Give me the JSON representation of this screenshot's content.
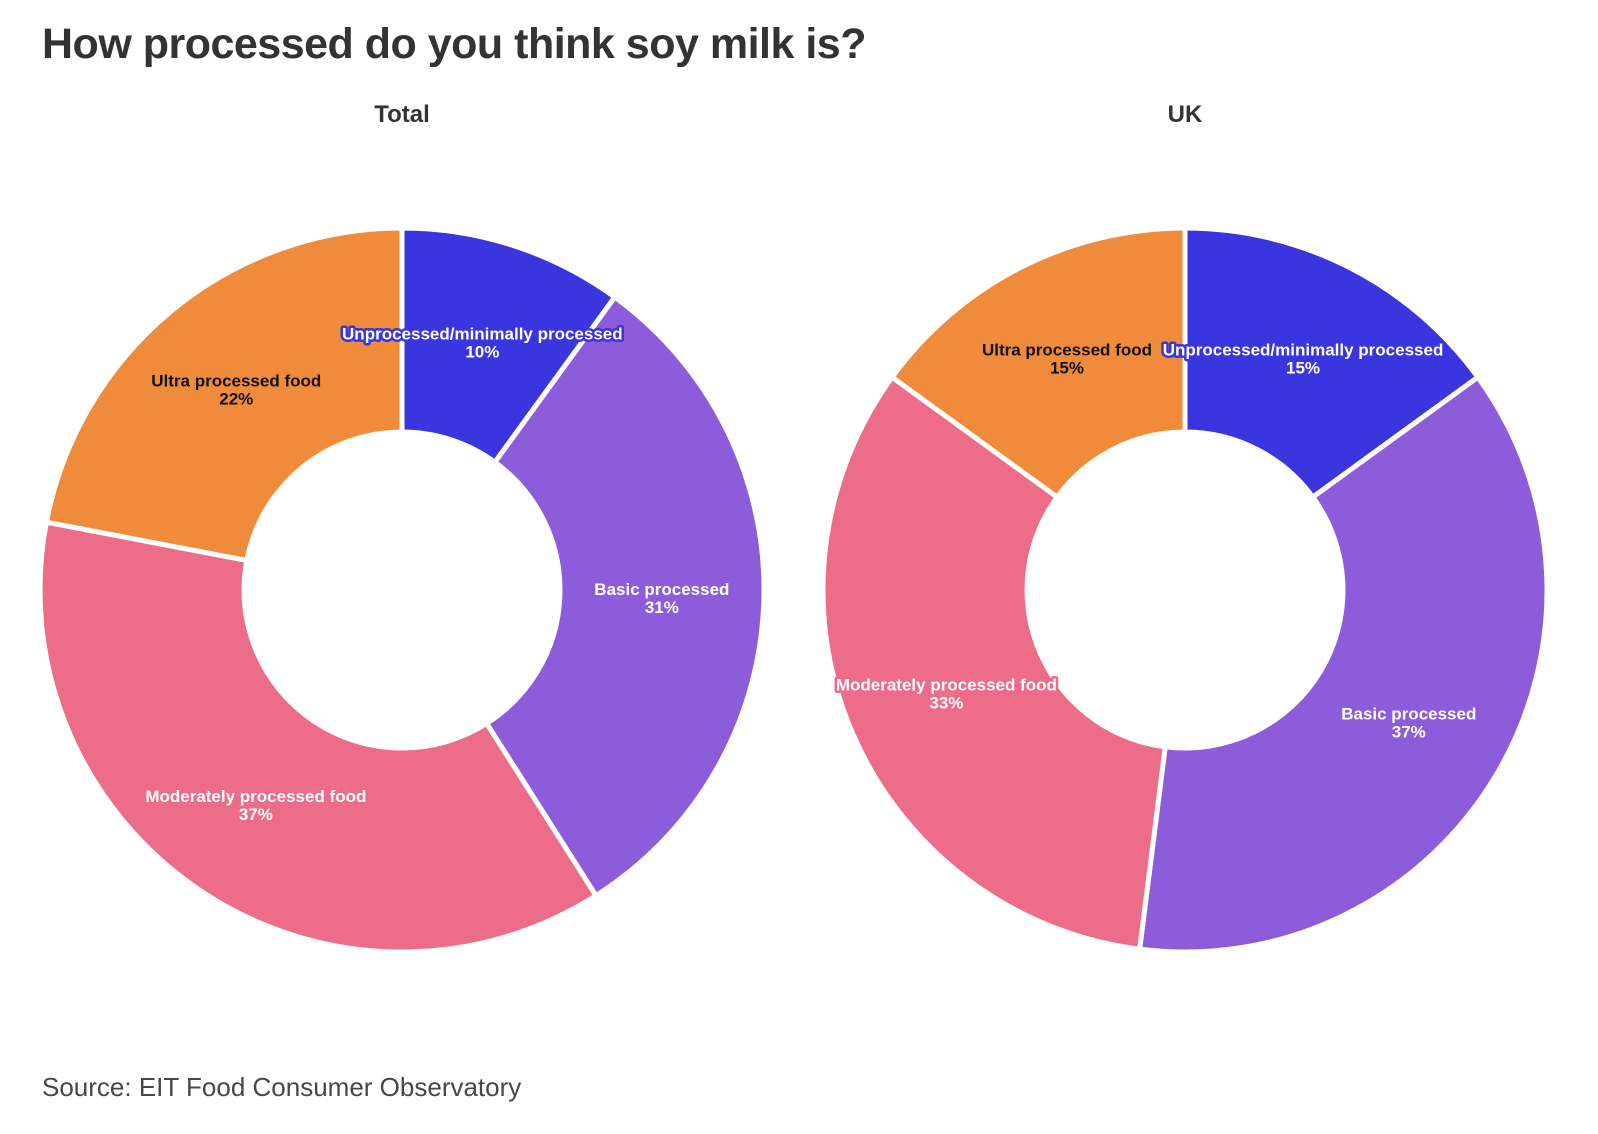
{
  "title": "How processed do you think soy milk is?",
  "source": "Source: EIT Food Consumer Observatory",
  "colors": {
    "background": "#ffffff",
    "title_text": "#333333",
    "source_text": "#474747",
    "slice_gap": "#ffffff"
  },
  "chart_data": [
    {
      "type": "pie",
      "variant": "donut",
      "title": "Total",
      "start_angle": 0,
      "direction": "clockwise",
      "categories": [
        "Unprocessed/minimally processed",
        "Basic processed",
        "Moderately processed food",
        "Ultra processed food"
      ],
      "values": [
        10,
        31,
        37,
        22
      ],
      "value_suffix": "%",
      "slice_colors": [
        "#3A35DE",
        "#8C5CDA",
        "#ED6C88",
        "#F08B3B"
      ],
      "label_text_colors": [
        "#ffffff",
        "#ffffff",
        "#ffffff",
        "#111111"
      ],
      "labels_inside": true,
      "legend": "none"
    },
    {
      "type": "pie",
      "variant": "donut",
      "title": "UK",
      "start_angle": 0,
      "direction": "clockwise",
      "categories": [
        "Unprocessed/minimally processed",
        "Basic processed",
        "Moderately processed food",
        "Ultra processed food"
      ],
      "values": [
        15,
        37,
        33,
        15
      ],
      "value_suffix": "%",
      "slice_colors": [
        "#3A35DE",
        "#8C5CDA",
        "#ED6C88",
        "#F08B3B"
      ],
      "label_text_colors": [
        "#ffffff",
        "#ffffff",
        "#ffffff",
        "#111111"
      ],
      "labels_inside": true,
      "legend": "none"
    }
  ]
}
